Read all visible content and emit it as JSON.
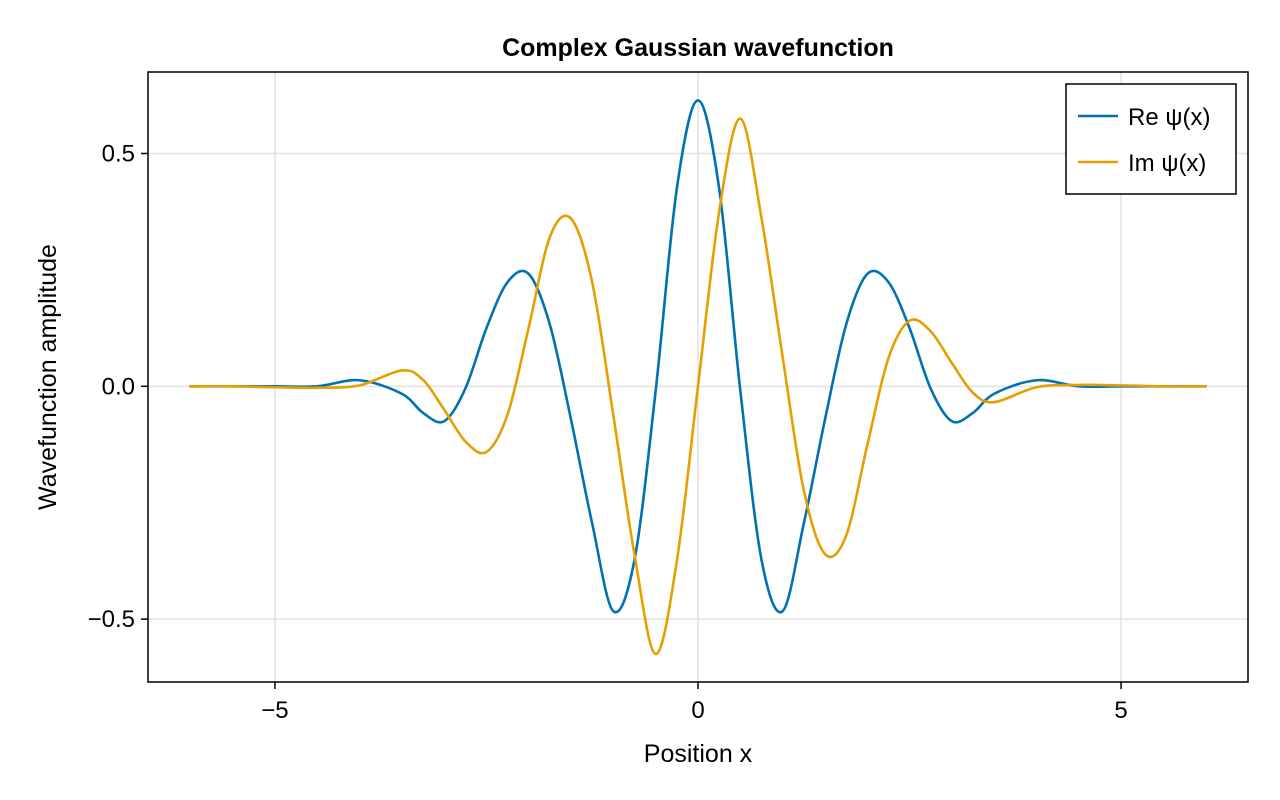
{
  "chart_data": {
    "type": "line",
    "title": "Complex Gaussian wavefunction",
    "xlabel": "Position x",
    "ylabel": "Wavefunction amplitude",
    "xlim": [
      -6.5,
      6.5
    ],
    "ylim": [
      -0.635,
      0.675
    ],
    "x_ticks": [
      -5,
      0,
      5
    ],
    "x_tick_labels": [
      "−5",
      "0",
      "5"
    ],
    "y_ticks": [
      -0.5,
      0.0,
      0.5
    ],
    "y_tick_labels": [
      "−0.5",
      "0.0",
      "0.5"
    ],
    "grid": true,
    "legend_position": "top-right",
    "x": [
      -6.0,
      -5.5,
      -5.0,
      -4.5,
      -4.0,
      -3.5,
      -3.25,
      -3.0,
      -2.75,
      -2.5,
      -2.25,
      -2.0,
      -1.75,
      -1.5,
      -1.25,
      -1.0,
      -0.75,
      -0.5,
      -0.25,
      0.0,
      0.25,
      0.5,
      0.75,
      1.0,
      1.25,
      1.5,
      1.75,
      2.0,
      2.25,
      2.5,
      2.75,
      3.0,
      3.25,
      3.5,
      4.0,
      4.5,
      5.0,
      5.5,
      6.0
    ],
    "series": [
      {
        "name": "Re ψ(x)",
        "color": "#0072b2",
        "values": [
          0.0,
          0.0,
          0.0,
          0.0,
          0.013,
          -0.016,
          -0.057,
          -0.075,
          -0.005,
          0.125,
          0.224,
          0.241,
          0.132,
          -0.072,
          -0.295,
          -0.483,
          -0.372,
          -0.009,
          0.425,
          0.614,
          0.425,
          -0.009,
          -0.372,
          -0.483,
          -0.295,
          -0.072,
          0.132,
          0.241,
          0.224,
          0.125,
          -0.005,
          -0.075,
          -0.057,
          -0.016,
          0.013,
          0.0,
          0.0,
          0.0,
          0.0
        ]
      },
      {
        "name": "Im ψ(x)",
        "color": "#e69f00",
        "values": [
          0.0,
          0.0,
          -0.002,
          -0.003,
          0.002,
          0.034,
          0.014,
          -0.05,
          -0.118,
          -0.141,
          -0.06,
          0.127,
          0.321,
          0.36,
          0.223,
          -0.063,
          -0.362,
          -0.575,
          -0.375,
          0.0,
          0.375,
          0.575,
          0.362,
          0.063,
          -0.223,
          -0.36,
          -0.321,
          -0.127,
          0.06,
          0.141,
          0.118,
          0.05,
          -0.014,
          -0.034,
          -0.002,
          0.003,
          0.002,
          0.0,
          0.0
        ]
      }
    ]
  }
}
